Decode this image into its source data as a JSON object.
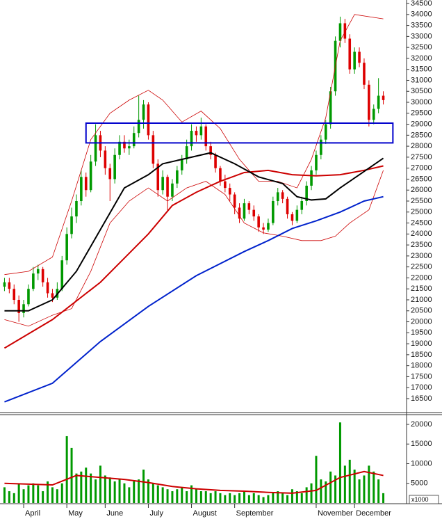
{
  "chart_data": [
    {
      "type": "candlestick",
      "up_color": "#009900",
      "down_color": "#dd0000",
      "ylim": [
        15960,
        34660
      ],
      "yticks": [
        16500,
        17000,
        17500,
        18000,
        18500,
        19000,
        19500,
        20000,
        20500,
        21000,
        21500,
        22000,
        22500,
        23000,
        23500,
        24000,
        24500,
        25000,
        25500,
        26000,
        26500,
        27000,
        27500,
        28000,
        28500,
        29000,
        29500,
        30000,
        30500,
        31000,
        31500,
        32000,
        32500,
        33000,
        33500,
        34000,
        34500
      ],
      "ohlc": [
        [
          21600,
          22000,
          21400,
          21800
        ],
        [
          21800,
          22000,
          21300,
          21500
        ],
        [
          21500,
          21700,
          20800,
          21000
        ],
        [
          21000,
          21200,
          20000,
          20400
        ],
        [
          20400,
          21000,
          20200,
          20800
        ],
        [
          20800,
          21700,
          20700,
          21500
        ],
        [
          21500,
          22500,
          21400,
          22200
        ],
        [
          22200,
          22600,
          21900,
          22400
        ],
        [
          22400,
          22500,
          21600,
          21800
        ],
        [
          21800,
          22000,
          21100,
          21300
        ],
        [
          21300,
          21500,
          20900,
          21100
        ],
        [
          21100,
          21800,
          21000,
          21500
        ],
        [
          21500,
          23000,
          21400,
          22800
        ],
        [
          22800,
          24300,
          22600,
          24000
        ],
        [
          24000,
          25200,
          23800,
          24800
        ],
        [
          24800,
          25800,
          24500,
          25500
        ],
        [
          25500,
          26900,
          25300,
          26600
        ],
        [
          26600,
          26800,
          25700,
          26000
        ],
        [
          26000,
          27600,
          25900,
          27300
        ],
        [
          27300,
          29000,
          27100,
          28500
        ],
        [
          28500,
          28700,
          27500,
          27800
        ],
        [
          27800,
          28000,
          26700,
          27000
        ],
        [
          27000,
          27200,
          25500,
          26500
        ],
        [
          26500,
          27900,
          26300,
          27600
        ],
        [
          27600,
          28500,
          27400,
          28200
        ],
        [
          28200,
          28500,
          27700,
          27900
        ],
        [
          27900,
          28300,
          27600,
          28000
        ],
        [
          28000,
          28900,
          27900,
          28600
        ],
        [
          28600,
          30300,
          28400,
          29200
        ],
        [
          29200,
          30100,
          28800,
          29900
        ],
        [
          29900,
          30000,
          28300,
          28500
        ],
        [
          28500,
          28700,
          27000,
          27200
        ],
        [
          27200,
          27400,
          25700,
          26000
        ],
        [
          26000,
          26900,
          25800,
          26600
        ],
        [
          26600,
          26700,
          25000,
          25700
        ],
        [
          25700,
          26500,
          25500,
          26300
        ],
        [
          26300,
          27100,
          26100,
          26900
        ],
        [
          26900,
          27600,
          26700,
          27400
        ],
        [
          27400,
          28300,
          27200,
          28000
        ],
        [
          28000,
          29000,
          27800,
          28700
        ],
        [
          28700,
          28900,
          28200,
          28500
        ],
        [
          28500,
          29300,
          28300,
          28900
        ],
        [
          28900,
          29000,
          27800,
          28000
        ],
        [
          28000,
          28200,
          27400,
          27600
        ],
        [
          27600,
          27700,
          26800,
          27000
        ],
        [
          27000,
          27100,
          26200,
          26400
        ],
        [
          26400,
          26700,
          25900,
          26100
        ],
        [
          26100,
          26300,
          25500,
          25800
        ],
        [
          25800,
          25900,
          24900,
          25200
        ],
        [
          25200,
          25400,
          24500,
          24700
        ],
        [
          24700,
          25600,
          24600,
          25400
        ],
        [
          25400,
          25500,
          24900,
          25100
        ],
        [
          25100,
          25300,
          24600,
          24800
        ],
        [
          24800,
          24900,
          24100,
          24300
        ],
        [
          24300,
          24500,
          24000,
          24200
        ],
        [
          24200,
          24700,
          24100,
          24500
        ],
        [
          24500,
          25700,
          24400,
          25500
        ],
        [
          25500,
          26100,
          25300,
          25900
        ],
        [
          25900,
          26000,
          25400,
          25600
        ],
        [
          25600,
          25700,
          24700,
          24900
        ],
        [
          24900,
          25000,
          24400,
          24600
        ],
        [
          24600,
          25300,
          24500,
          25100
        ],
        [
          25100,
          25700,
          24900,
          25500
        ],
        [
          25500,
          26400,
          25300,
          26200
        ],
        [
          26200,
          27100,
          26000,
          26900
        ],
        [
          26900,
          27800,
          26700,
          27600
        ],
        [
          27600,
          28500,
          27400,
          28300
        ],
        [
          28300,
          29200,
          28100,
          29000
        ],
        [
          29000,
          30700,
          28800,
          30500
        ],
        [
          30500,
          33000,
          30300,
          32800
        ],
        [
          32800,
          33900,
          32500,
          33600
        ],
        [
          33600,
          33800,
          32700,
          32900
        ],
        [
          32900,
          33100,
          31300,
          31500
        ],
        [
          31500,
          32500,
          31300,
          32300
        ],
        [
          32300,
          32500,
          31600,
          31800
        ],
        [
          31800,
          32000,
          30600,
          30800
        ],
        [
          30800,
          31000,
          28900,
          29200
        ],
        [
          29200,
          29900,
          29000,
          29700
        ],
        [
          29700,
          31100,
          29500,
          30300
        ],
        [
          30300,
          30500,
          29900,
          30100
        ]
      ],
      "lines": [
        {
          "color": "#cc0000",
          "width": 0.8,
          "x": [
            0,
            5,
            10,
            14,
            18,
            22,
            26,
            30,
            33,
            37,
            41,
            45,
            49,
            53,
            57,
            61,
            64,
            67,
            70,
            73,
            79
          ],
          "values": [
            22150,
            22300,
            22950,
            25500,
            28300,
            29500,
            30100,
            30550,
            30100,
            29100,
            29600,
            28800,
            27400,
            26400,
            26400,
            26100,
            27400,
            29300,
            32800,
            34000,
            33800
          ]
        },
        {
          "color": "#cc0000",
          "width": 0.8,
          "x": [
            0,
            5,
            10,
            14,
            18,
            22,
            26,
            30,
            34,
            38,
            42,
            46,
            50,
            54,
            58,
            62,
            66,
            69,
            72,
            76,
            79
          ],
          "values": [
            20100,
            19800,
            20300,
            20600,
            22300,
            24500,
            25500,
            26100,
            25500,
            26100,
            26400,
            25800,
            24500,
            24050,
            23900,
            23700,
            23700,
            23900,
            24500,
            25100,
            26900
          ]
        },
        {
          "color": "#0022cc",
          "width": 2,
          "x": [
            0,
            10,
            20,
            30,
            40,
            50,
            55,
            60,
            65,
            70,
            75,
            79
          ],
          "values": [
            16350,
            17200,
            19100,
            20700,
            22100,
            23200,
            23700,
            24250,
            24600,
            25000,
            25500,
            25700
          ]
        },
        {
          "color": "#cc0000",
          "width": 2,
          "x": [
            0,
            10,
            20,
            25,
            30,
            35,
            40,
            45,
            50,
            55,
            60,
            65,
            70,
            75,
            79
          ],
          "values": [
            18800,
            20100,
            21800,
            22900,
            24000,
            25300,
            25900,
            26400,
            26800,
            26900,
            26700,
            26650,
            26700,
            26900,
            27100
          ]
        },
        {
          "color": "#000000",
          "width": 2,
          "x": [
            0,
            5,
            10,
            15,
            20,
            25,
            30,
            33,
            38,
            43,
            48,
            53,
            58,
            61,
            64,
            67,
            70,
            74,
            79
          ],
          "values": [
            20500,
            20500,
            21000,
            22300,
            24200,
            26100,
            26700,
            27200,
            27450,
            27700,
            27200,
            26600,
            26300,
            25700,
            25550,
            25600,
            26100,
            26700,
            27450
          ]
        }
      ],
      "zone": {
        "x": [
          17,
          79
        ],
        "y": [
          28150,
          29050
        ],
        "color": "#0000cc"
      }
    },
    {
      "type": "bar",
      "color": "#009900",
      "unit_label": "x1000",
      "ylim": [
        0,
        22300
      ],
      "yticks": [
        5000,
        10000,
        15000,
        20000
      ],
      "categories": [
        null,
        null,
        null,
        null,
        "April",
        null,
        null,
        null,
        null,
        null,
        null,
        null,
        null,
        "May",
        null,
        null,
        null,
        null,
        null,
        null,
        null,
        "June",
        null,
        null,
        null,
        null,
        null,
        null,
        null,
        null,
        "July",
        null,
        null,
        null,
        null,
        null,
        null,
        null,
        null,
        "August",
        null,
        null,
        null,
        null,
        null,
        null,
        null,
        null,
        "September",
        null,
        null,
        null,
        null,
        null,
        null,
        null,
        null,
        null,
        null,
        null,
        null,
        null,
        null,
        null,
        null,
        "November",
        null,
        null,
        null,
        null,
        null,
        null,
        null,
        "December",
        null,
        null,
        null,
        null,
        null,
        null
      ],
      "values": [
        4000,
        3000,
        2500,
        5000,
        3500,
        4500,
        5000,
        4500,
        3000,
        5500,
        4000,
        3500,
        5000,
        17000,
        14000,
        7500,
        8000,
        9000,
        7500,
        6000,
        9500,
        7000,
        6500,
        5500,
        6000,
        5000,
        4000,
        5500,
        6000,
        8500,
        6000,
        5000,
        4500,
        4000,
        3500,
        3000,
        3500,
        4000,
        3000,
        4500,
        3500,
        3000,
        3000,
        2500,
        3000,
        2500,
        2000,
        2500,
        2000,
        2500,
        3000,
        2000,
        2500,
        2000,
        1500,
        2000,
        2500,
        3000,
        2500,
        2000,
        3500,
        3000,
        2500,
        4000,
        5000,
        12000,
        6000,
        5500,
        8000,
        7000,
        20500,
        9500,
        11000,
        8500,
        6000,
        7000,
        9500,
        8000,
        6000,
        2500
      ],
      "lines": [
        {
          "color": "#cc0000",
          "width": 2,
          "x": [
            0,
            5,
            10,
            15,
            20,
            25,
            30,
            35,
            40,
            45,
            50,
            55,
            60,
            65,
            70,
            75,
            79
          ],
          "values": [
            5000,
            4800,
            4600,
            7000,
            6500,
            6000,
            5200,
            4200,
            3600,
            3200,
            3000,
            2700,
            2500,
            3200,
            6500,
            8000,
            7000
          ]
        }
      ]
    }
  ]
}
